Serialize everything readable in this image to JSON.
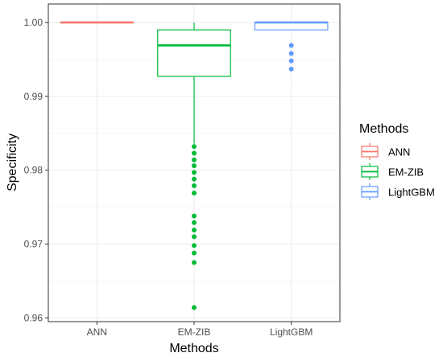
{
  "chart_data": {
    "type": "boxplot",
    "xlabel": "Methods",
    "ylabel": "Specificity",
    "ylim": [
      0.9595,
      1.0025
    ],
    "y_ticks": [
      0.96,
      0.97,
      0.98,
      0.99,
      1.0
    ],
    "y_tick_labels": [
      "0.96",
      "0.97",
      "0.98",
      "0.99",
      "1.00"
    ],
    "grid": true,
    "legend": {
      "title": "Methods",
      "position": "right"
    },
    "categories": [
      "ANN",
      "EM-ZIB",
      "LightGBM"
    ],
    "series": [
      {
        "name": "ANN",
        "color": "#F8766D",
        "whisker_low": 1.0,
        "q1": 1.0,
        "median": 1.0,
        "q3": 1.0,
        "whisker_high": 1.0,
        "outliers": []
      },
      {
        "name": "EM-ZIB",
        "color": "#00BA38",
        "whisker_low": 0.9836,
        "q1": 0.9927,
        "median": 0.9969,
        "q3": 0.999,
        "whisker_high": 1.0,
        "outliers": [
          0.9832,
          0.9823,
          0.9814,
          0.9806,
          0.9797,
          0.9788,
          0.9779,
          0.9769,
          0.9738,
          0.9729,
          0.9719,
          0.971,
          0.9698,
          0.9688,
          0.9675,
          0.9614
        ]
      },
      {
        "name": "LightGBM",
        "color": "#619CFF",
        "whisker_low": 0.999,
        "q1": 0.999,
        "median": 1.0,
        "q3": 1.0,
        "whisker_high": 1.0,
        "outliers": [
          0.9969,
          0.9958,
          0.9948,
          0.9937
        ]
      }
    ]
  }
}
